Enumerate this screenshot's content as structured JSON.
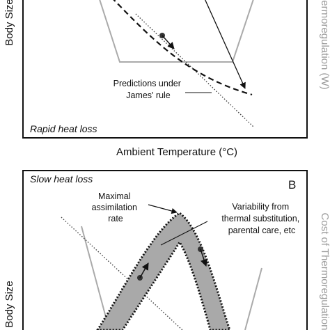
{
  "panel_a": {
    "y_axis_label": "Body Size",
    "right_axis_label": "Cost of Thermoregulation (W)",
    "annotation": "Predictions under\nJames' rule",
    "corner_label": "Rapid heat loss",
    "x_axis_label": "Ambient Temperature (°C)"
  },
  "panel_b": {
    "corner_label": "Slow heat loss",
    "panel_letter": "B",
    "y_axis_label": "Body Size",
    "right_axis_label": "Cost of Thermoregulation",
    "annotation_max": "Maximal\nassimilation\nrate",
    "annotation_var": "Variability from\nthermal substitution,\nparental care, etc"
  },
  "colors": {
    "cost_curve": "#aaaaaa",
    "band_fill": "#a9a9a9",
    "frame": "#111111"
  }
}
